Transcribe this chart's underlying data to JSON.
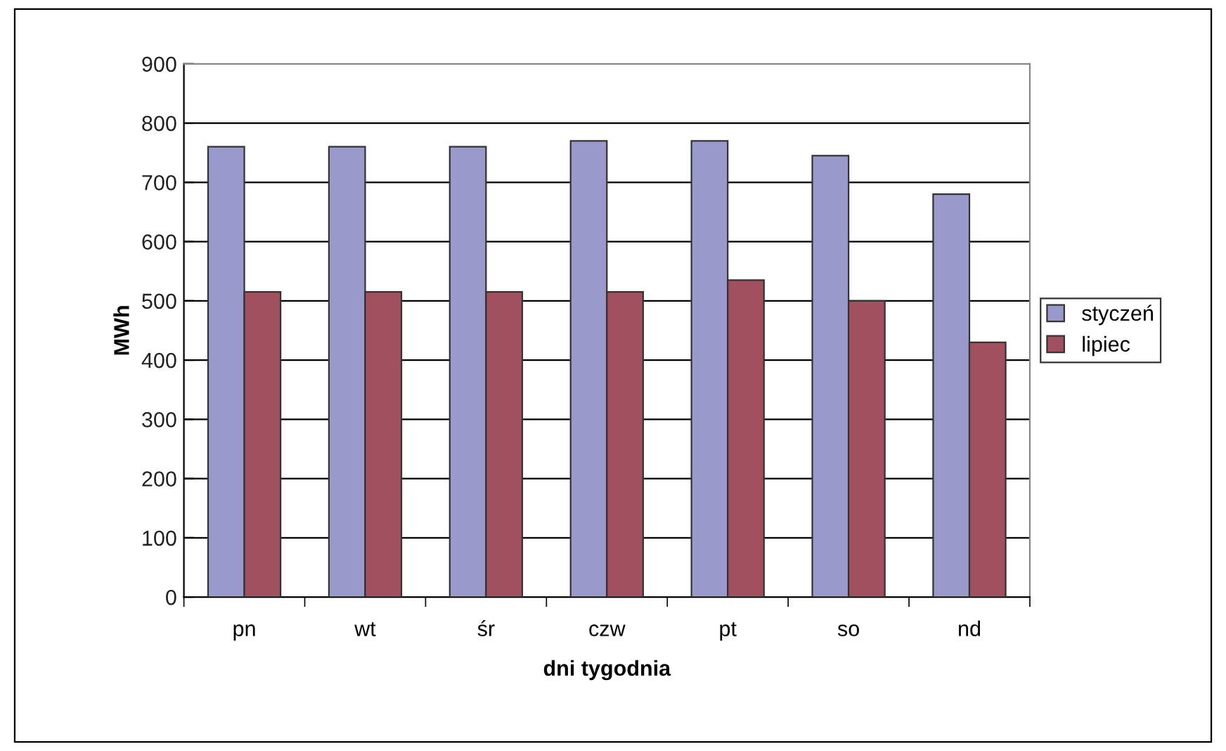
{
  "chart_data": {
    "type": "bar",
    "xlabel": "dni tygodnia",
    "ylabel": "MWh",
    "categories": [
      "pn",
      "wt",
      "śr",
      "czw",
      "pt",
      "so",
      "nd"
    ],
    "series": [
      {
        "name": "styczeń",
        "color": "#9999cc",
        "values": [
          760,
          760,
          760,
          770,
          770,
          745,
          680
        ]
      },
      {
        "name": "lipiec",
        "color": "#a0505f",
        "values": [
          515,
          515,
          515,
          515,
          535,
          500,
          430
        ]
      }
    ],
    "ylim": [
      0,
      900
    ],
    "yticks": [
      0,
      100,
      200,
      300,
      400,
      500,
      600,
      700,
      800,
      900
    ],
    "grid": "y",
    "legend": "right"
  }
}
